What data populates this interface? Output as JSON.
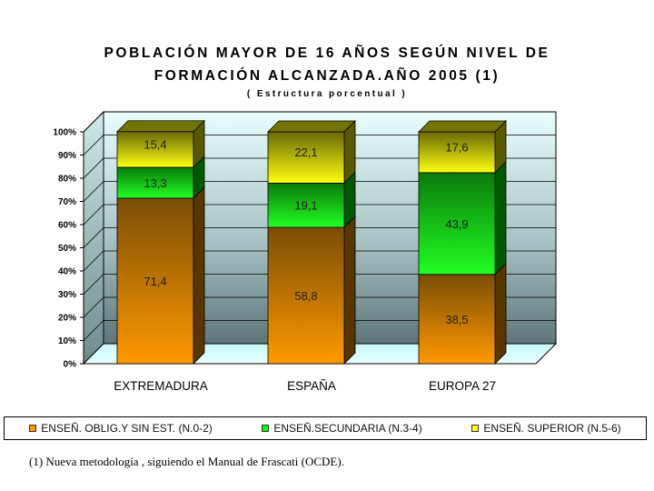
{
  "chart_data": {
    "type": "bar",
    "stacked": true,
    "title_line1": "POBLACIÓN MAYOR DE 16 AÑOS SEGÚN NIVEL DE",
    "title_line2": "FORMACIÓN ALCANZADA.AÑO 2005 (1)",
    "subtitle": "( Estructura porcentual )",
    "categories": [
      "EXTREMADURA",
      "ESPAÑA",
      "EUROPA 27"
    ],
    "series": [
      {
        "name": "ENSEÑ. OBLIG.Y SIN EST. (N.0-2)",
        "values": [
          71.4,
          58.8,
          38.5
        ],
        "labels": [
          "71,4",
          "58,8",
          "38,5"
        ],
        "color": "#ff9900"
      },
      {
        "name": "ENSEÑ.SECUNDARIA (N.3-4)",
        "values": [
          13.3,
          19.1,
          43.9
        ],
        "labels": [
          "13,3",
          "19,1",
          "43,9"
        ],
        "color": "#00ff00"
      },
      {
        "name": "ENSEÑ. SUPERIOR (N.5-6)",
        "values": [
          15.4,
          22.1,
          17.6
        ],
        "labels": [
          "15,4",
          "22,1",
          "17,6"
        ],
        "color": "#ffff00"
      }
    ],
    "yticks": [
      "0%",
      "10%",
      "20%",
      "30%",
      "40%",
      "50%",
      "60%",
      "70%",
      "80%",
      "90%",
      "100%"
    ],
    "ylim": [
      0,
      100
    ],
    "grid": true,
    "legend_position": "bottom"
  },
  "footnote": "(1) Nueva metodología , siguiendo el Manual de Frascati (OCDE)."
}
